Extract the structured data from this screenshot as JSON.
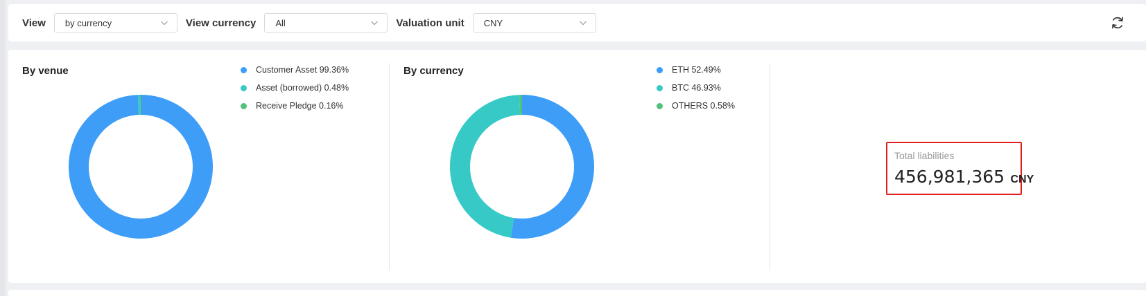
{
  "filters": {
    "view_label": "View",
    "view_value": "by currency",
    "view_currency_label": "View currency",
    "view_currency_value": "All",
    "valuation_unit_label": "Valuation unit",
    "valuation_unit_value": "CNY"
  },
  "icons": {
    "refresh": "refresh-icon",
    "dropdown": "chevron-down-icon"
  },
  "colors": {
    "blue": "#3d9df7",
    "teal": "#36c9c6",
    "green": "#52c27a",
    "highlight": "#e01d1d"
  },
  "by_venue": {
    "title": "By venue",
    "legend": [
      {
        "label": "Customer Asset 99.36%",
        "color": "#3d9df7"
      },
      {
        "label": "Asset (borrowed) 0.48%",
        "color": "#36c9c6"
      },
      {
        "label": "Receive Pledge 0.16%",
        "color": "#52c27a"
      }
    ]
  },
  "by_currency": {
    "title": "By currency",
    "legend": [
      {
        "label": "ETH 52.49%",
        "color": "#3d9df7"
      },
      {
        "label": "BTC 46.93%",
        "color": "#36c9c6"
      },
      {
        "label": "OTHERS 0.58%",
        "color": "#52c27a"
      }
    ]
  },
  "total": {
    "label": "Total liabilities",
    "value": "456,981,365",
    "unit": "CNY"
  },
  "chart_data": [
    {
      "type": "pie",
      "title": "By venue",
      "categories": [
        "Customer Asset",
        "Asset (borrowed)",
        "Receive Pledge"
      ],
      "values": [
        99.36,
        0.48,
        0.16
      ],
      "colors": [
        "#3d9df7",
        "#36c9c6",
        "#52c27a"
      ],
      "legend": "top-right"
    },
    {
      "type": "pie",
      "title": "By currency",
      "categories": [
        "ETH",
        "BTC",
        "OTHERS"
      ],
      "values": [
        52.49,
        46.93,
        0.58
      ],
      "colors": [
        "#3d9df7",
        "#36c9c6",
        "#52c27a"
      ],
      "legend": "top-right"
    }
  ]
}
